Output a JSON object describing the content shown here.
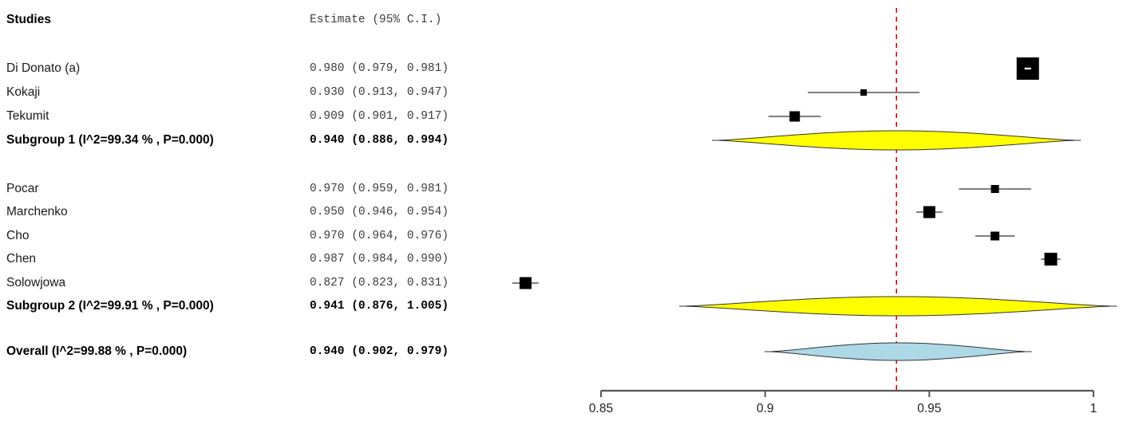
{
  "header": {
    "studies_label": "Studies",
    "estimate_label": "Estimate (95% C.I.)"
  },
  "colors": {
    "subgroup_diamond_fill": "#FFFF00",
    "overall_diamond_fill": "#ADD8E6",
    "diamond_outline": "#333333",
    "reference_line": "#DD0000",
    "ci_line": "#555555",
    "summary_ci_line": "#777777",
    "marker_fill": "#000000",
    "marker_inner_ci": "#E8E8E8",
    "axis_line": "#555555",
    "axis_label_color": "#222222"
  },
  "chart_data": {
    "type": "forest",
    "title": "",
    "xlabel": "",
    "reference_value": 0.94,
    "axis": {
      "min": 0.85,
      "max": 1.0,
      "ticks": [
        0.85,
        0.9,
        0.95,
        1
      ],
      "tick_labels": [
        "0.85",
        "0.9",
        "0.95",
        "1"
      ]
    },
    "columns": [
      "Studies",
      "Estimate (95% C.I.)"
    ],
    "rows": [
      {
        "type": "study",
        "name": "Di Donato (a)",
        "estimate_label": "0.980 (0.979, 0.981)",
        "est": 0.98,
        "lo": 0.979,
        "hi": 0.981,
        "marker_size": 28
      },
      {
        "type": "study",
        "name": "Kokaji",
        "estimate_label": "0.930 (0.913, 0.947)",
        "est": 0.93,
        "lo": 0.913,
        "hi": 0.947,
        "marker_size": 8
      },
      {
        "type": "study",
        "name": "Tekumit",
        "estimate_label": "0.909 (0.901, 0.917)",
        "est": 0.909,
        "lo": 0.901,
        "hi": 0.917,
        "marker_size": 13
      },
      {
        "type": "subgroup",
        "name": "Subgroup 1 (I^2=99.34 % , P=0.000)",
        "estimate_label": "0.940 (0.886, 0.994)",
        "est": 0.94,
        "lo": 0.886,
        "hi": 0.994
      },
      {
        "type": "study",
        "name": "Pocar",
        "estimate_label": "0.970 (0.959, 0.981)",
        "est": 0.97,
        "lo": 0.959,
        "hi": 0.981,
        "marker_size": 10
      },
      {
        "type": "study",
        "name": "Marchenko",
        "estimate_label": "0.950 (0.946, 0.954)",
        "est": 0.95,
        "lo": 0.946,
        "hi": 0.954,
        "marker_size": 15
      },
      {
        "type": "study",
        "name": "Cho",
        "estimate_label": "0.970 (0.964, 0.976)",
        "est": 0.97,
        "lo": 0.964,
        "hi": 0.976,
        "marker_size": 11
      },
      {
        "type": "study",
        "name": "Chen",
        "estimate_label": "0.987 (0.984, 0.990)",
        "est": 0.987,
        "lo": 0.984,
        "hi": 0.99,
        "marker_size": 16
      },
      {
        "type": "study",
        "name": "Solowjowa",
        "estimate_label": "0.827 (0.823, 0.831)",
        "est": 0.827,
        "lo": 0.823,
        "hi": 0.831,
        "marker_size": 15
      },
      {
        "type": "subgroup",
        "name": "Subgroup 2 (I^2=99.91 % , P=0.000)",
        "estimate_label": "0.941 (0.876, 1.005)",
        "est": 0.941,
        "lo": 0.876,
        "hi": 1.005
      },
      {
        "type": "overall",
        "name": "Overall (I^2=99.88 % , P=0.000)",
        "estimate_label": "0.940 (0.902, 0.979)",
        "est": 0.94,
        "lo": 0.902,
        "hi": 0.979
      }
    ]
  }
}
